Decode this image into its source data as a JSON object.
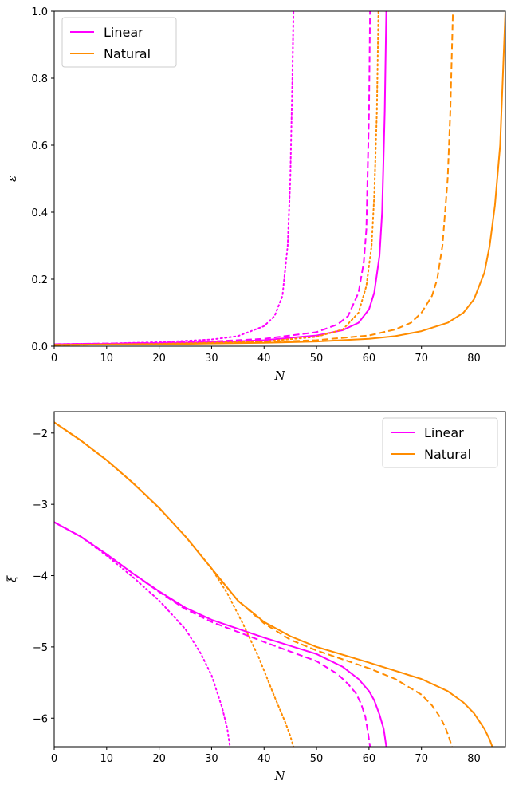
{
  "chart_data": [
    {
      "type": "line",
      "xlabel": "N",
      "ylabel": "ε",
      "xlim": [
        0,
        86
      ],
      "ylim": [
        0,
        1.0
      ],
      "xticks": [
        "0",
        "10",
        "20",
        "30",
        "40",
        "50",
        "60",
        "70",
        "80"
      ],
      "yticks": [
        "0.0",
        "0.2",
        "0.4",
        "0.6",
        "0.8",
        "1.0"
      ],
      "legend_position": "top-left",
      "legend": [
        {
          "label": "Linear",
          "color": "#ff00ff"
        },
        {
          "label": "Natural",
          "color": "#ff8c00"
        }
      ],
      "series": [
        {
          "color": "#ff00ff",
          "style": "solid",
          "x": [
            0,
            10,
            20,
            30,
            40,
            50,
            55,
            58,
            60,
            61,
            62,
            62.5,
            63,
            63.3
          ],
          "y": [
            0.006,
            0.007,
            0.009,
            0.012,
            0.018,
            0.032,
            0.048,
            0.07,
            0.11,
            0.16,
            0.27,
            0.4,
            0.7,
            1.0
          ]
        },
        {
          "color": "#ff00ff",
          "style": "dashed",
          "x": [
            0,
            10,
            20,
            30,
            40,
            50,
            54,
            56,
            58,
            59,
            59.5,
            60,
            60.2
          ],
          "y": [
            0.006,
            0.008,
            0.01,
            0.014,
            0.022,
            0.042,
            0.065,
            0.09,
            0.16,
            0.25,
            0.35,
            0.7,
            1.0
          ]
        },
        {
          "color": "#ff00ff",
          "style": "dotted",
          "x": [
            0,
            10,
            20,
            30,
            35,
            40,
            42,
            43.5,
            44.5,
            45,
            45.4,
            45.6
          ],
          "y": [
            0.006,
            0.008,
            0.012,
            0.02,
            0.03,
            0.06,
            0.09,
            0.15,
            0.3,
            0.5,
            0.8,
            1.0
          ]
        },
        {
          "color": "#ff8c00",
          "style": "solid",
          "x": [
            0,
            20,
            40,
            50,
            60,
            65,
            70,
            75,
            78,
            80,
            82,
            83,
            84,
            85,
            85.5,
            86
          ],
          "y": [
            0.004,
            0.006,
            0.01,
            0.014,
            0.022,
            0.03,
            0.045,
            0.07,
            0.1,
            0.14,
            0.22,
            0.3,
            0.42,
            0.6,
            0.8,
            1.0
          ]
        },
        {
          "color": "#ff8c00",
          "style": "dashed",
          "x": [
            0,
            20,
            40,
            50,
            60,
            65,
            68,
            70,
            72,
            73,
            74,
            75,
            75.5,
            76
          ],
          "y": [
            0.004,
            0.006,
            0.012,
            0.018,
            0.032,
            0.05,
            0.07,
            0.1,
            0.15,
            0.2,
            0.3,
            0.5,
            0.7,
            1.0
          ]
        },
        {
          "color": "#ff8c00",
          "style": "dotted",
          "x": [
            0,
            20,
            40,
            50,
            55,
            58,
            59.5,
            60.5,
            61,
            61.5,
            61.8
          ],
          "y": [
            0.004,
            0.007,
            0.014,
            0.028,
            0.05,
            0.1,
            0.18,
            0.3,
            0.45,
            0.7,
            1.0
          ]
        }
      ]
    },
    {
      "type": "line",
      "xlabel": "N",
      "ylabel": "ξ",
      "xlim": [
        0,
        86
      ],
      "ylim": [
        -6.4,
        -1.7
      ],
      "xticks": [
        "0",
        "10",
        "20",
        "30",
        "40",
        "50",
        "60",
        "70",
        "80"
      ],
      "yticks": [
        "−2",
        "−3",
        "−4",
        "−5",
        "−6"
      ],
      "legend_position": "top-right",
      "legend": [
        {
          "label": "Linear",
          "color": "#ff00ff"
        },
        {
          "label": "Natural",
          "color": "#ff8c00"
        }
      ],
      "series": [
        {
          "color": "#ff00ff",
          "style": "solid",
          "x": [
            0,
            5,
            10,
            15,
            20,
            25,
            30,
            40,
            50,
            55,
            58,
            60,
            61,
            62,
            62.8,
            63.3
          ],
          "y": [
            -3.25,
            -3.45,
            -3.7,
            -3.97,
            -4.22,
            -4.45,
            -4.62,
            -4.87,
            -5.1,
            -5.28,
            -5.45,
            -5.62,
            -5.75,
            -5.95,
            -6.15,
            -6.4
          ]
        },
        {
          "color": "#ff00ff",
          "style": "dashed",
          "x": [
            0,
            5,
            10,
            15,
            20,
            25,
            30,
            40,
            50,
            54,
            56,
            57.5,
            58.5,
            59.3,
            59.8,
            60.2
          ],
          "y": [
            -3.25,
            -3.45,
            -3.7,
            -3.97,
            -4.23,
            -4.47,
            -4.65,
            -4.93,
            -5.2,
            -5.38,
            -5.52,
            -5.65,
            -5.8,
            -5.98,
            -6.2,
            -6.4
          ]
        },
        {
          "color": "#ff00ff",
          "style": "dotted",
          "x": [
            0,
            5,
            10,
            15,
            20,
            25,
            28,
            30,
            32,
            33,
            33.5
          ],
          "y": [
            -3.25,
            -3.45,
            -3.72,
            -4.02,
            -4.35,
            -4.75,
            -5.1,
            -5.4,
            -5.85,
            -6.15,
            -6.4
          ]
        },
        {
          "color": "#ff8c00",
          "style": "solid",
          "x": [
            0,
            5,
            10,
            15,
            20,
            25,
            30,
            35,
            40,
            45,
            50,
            60,
            70,
            75,
            78,
            80,
            82,
            83,
            83.5
          ],
          "y": [
            -1.85,
            -2.1,
            -2.38,
            -2.7,
            -3.05,
            -3.45,
            -3.9,
            -4.35,
            -4.65,
            -4.85,
            -5.0,
            -5.22,
            -5.45,
            -5.62,
            -5.78,
            -5.93,
            -6.15,
            -6.3,
            -6.4
          ]
        },
        {
          "color": "#ff8c00",
          "style": "dashed",
          "x": [
            0,
            5,
            10,
            15,
            20,
            25,
            30,
            35,
            40,
            45,
            50,
            60,
            65,
            70,
            72,
            73.5,
            74.5,
            75.3,
            75.8
          ],
          "y": [
            -1.85,
            -2.1,
            -2.38,
            -2.7,
            -3.05,
            -3.45,
            -3.9,
            -4.35,
            -4.67,
            -4.9,
            -5.05,
            -5.3,
            -5.45,
            -5.67,
            -5.82,
            -5.98,
            -6.12,
            -6.28,
            -6.4
          ]
        },
        {
          "color": "#ff8c00",
          "style": "dotted",
          "x": [
            0,
            5,
            10,
            15,
            20,
            25,
            30,
            33,
            36,
            39,
            42,
            44,
            45,
            45.6
          ],
          "y": [
            -1.85,
            -2.1,
            -2.38,
            -2.7,
            -3.05,
            -3.45,
            -3.9,
            -4.25,
            -4.68,
            -5.15,
            -5.7,
            -6.05,
            -6.25,
            -6.4
          ]
        }
      ]
    }
  ]
}
